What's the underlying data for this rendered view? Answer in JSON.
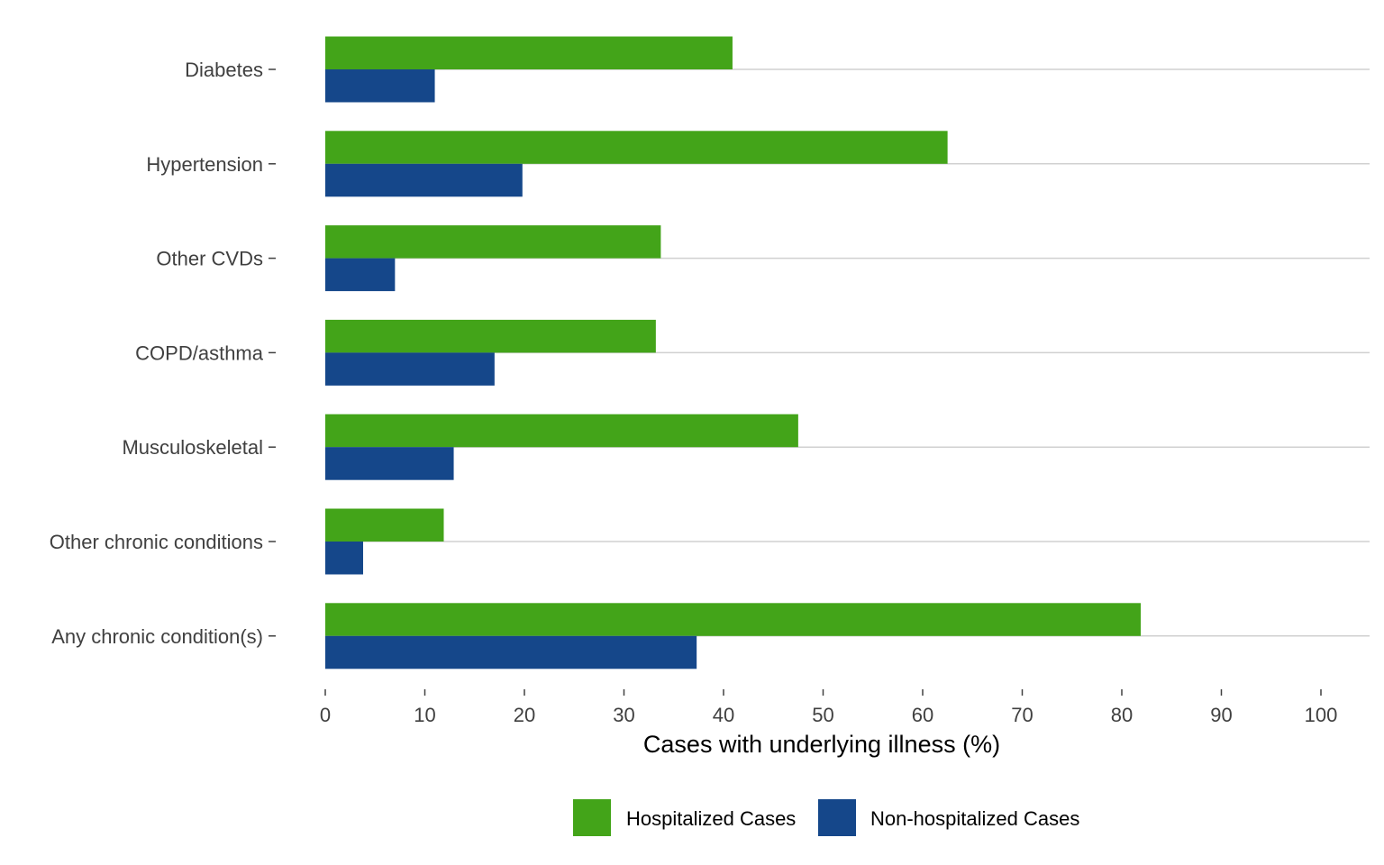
{
  "chart_data": {
    "type": "bar",
    "orientation": "horizontal",
    "categories": [
      "Diabetes",
      "Hypertension",
      "Other CVDs",
      "COPD/asthma",
      "Musculoskeletal",
      "Other chronic conditions",
      "Any chronic condition(s)"
    ],
    "series": [
      {
        "name": "Hospitalized Cases",
        "color": "#43a419",
        "values": [
          40.9,
          62.5,
          33.7,
          33.2,
          47.5,
          11.9,
          81.9
        ]
      },
      {
        "name": "Non-hospitalized Cases",
        "color": "#15478a",
        "values": [
          11.0,
          19.8,
          7.0,
          17.0,
          12.9,
          3.8,
          37.3
        ]
      }
    ],
    "title": "",
    "xlabel": "Cases with underlying illness (%)",
    "ylabel": "",
    "xlim": [
      0,
      100
    ],
    "xticks": [
      "0",
      "10",
      "20",
      "30",
      "40",
      "50",
      "60",
      "70",
      "80",
      "90",
      "100"
    ],
    "grid": "horizontal",
    "legend_position": "bottom"
  }
}
